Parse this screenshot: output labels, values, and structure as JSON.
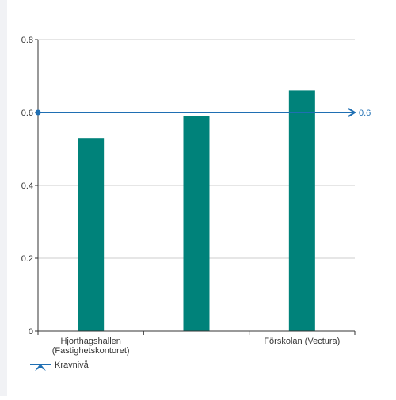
{
  "colors": {
    "bar": "#00827a",
    "threshold": "#1f6fb3",
    "grid": "#cccccc",
    "axis": "#333333",
    "tick_text": "#333333",
    "sidebar": "#f1f2f5"
  },
  "chart_data": {
    "type": "bar",
    "categories": [
      "Hjorthagshallen (Fastighetskontoret)",
      "",
      "Förskolan (Vectura)"
    ],
    "category_labels": [
      [
        "Hjorthagshallen",
        "(Fastighetskontoret)"
      ],
      [],
      [
        "Förskolan (Vectura)"
      ]
    ],
    "values": [
      0.53,
      0.59,
      0.66
    ],
    "ylim": [
      0,
      0.8
    ],
    "yticks": [
      0,
      0.2,
      0.4,
      0.6,
      0.8
    ],
    "ytick_labels": [
      "0",
      "0.2",
      "0.4",
      "0.6",
      "0.8"
    ],
    "grid": true,
    "threshold": {
      "name": "Kravnivå",
      "value": 0.6,
      "label": "0.6"
    },
    "legend": {
      "placement": "bottom-left",
      "items": [
        "Kravnivå"
      ]
    },
    "title": "",
    "xlabel": "",
    "ylabel": ""
  }
}
